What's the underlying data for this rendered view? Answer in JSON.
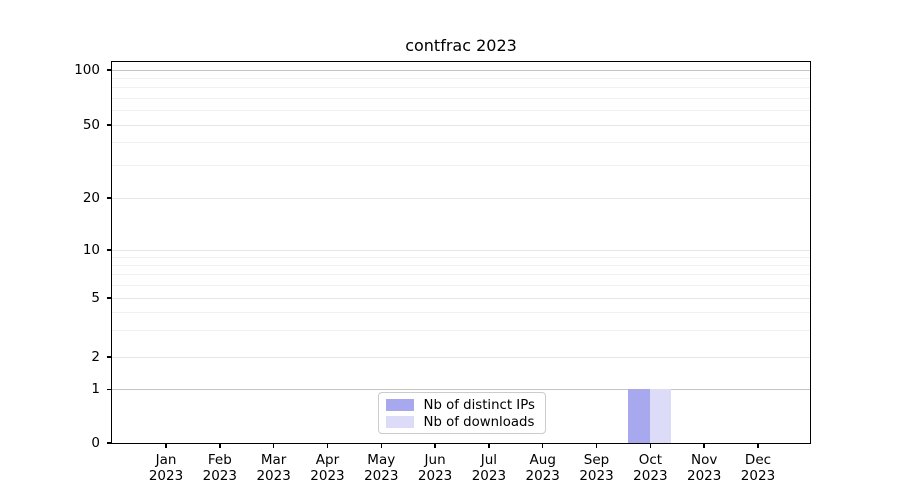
{
  "chart_data": {
    "type": "bar",
    "title": "contfrac 2023",
    "x": {
      "categories": [
        "Jan",
        "Feb",
        "Mar",
        "Apr",
        "May",
        "Jun",
        "Jul",
        "Aug",
        "Sep",
        "Oct",
        "Nov",
        "Dec"
      ],
      "year": "2023"
    },
    "y": {
      "scale": "symlog",
      "ticks": [
        0,
        1,
        2,
        5,
        10,
        20,
        50,
        100
      ],
      "minor_ticks": [
        3,
        4,
        6,
        7,
        8,
        9,
        30,
        40,
        60,
        70,
        80,
        90
      ],
      "ylim": [
        0,
        112
      ]
    },
    "series": [
      {
        "name": "Nb of distinct IPs",
        "color": "#a8a8ef",
        "values": [
          0,
          0,
          0,
          0,
          0,
          0,
          0,
          0,
          0,
          1,
          0,
          0
        ]
      },
      {
        "name": "Nb of downloads",
        "color": "#dcdcf8",
        "values": [
          0,
          0,
          0,
          0,
          0,
          0,
          0,
          0,
          0,
          1,
          0,
          0
        ]
      }
    ],
    "legend": {
      "position": "lower center"
    },
    "grid": "horizontal major+minor",
    "colors": {
      "grid_major": "#e6e6e6",
      "grid_strong": "#c4c4c4",
      "grid_minor": "#f1f1f1",
      "axis": "#000000"
    }
  }
}
